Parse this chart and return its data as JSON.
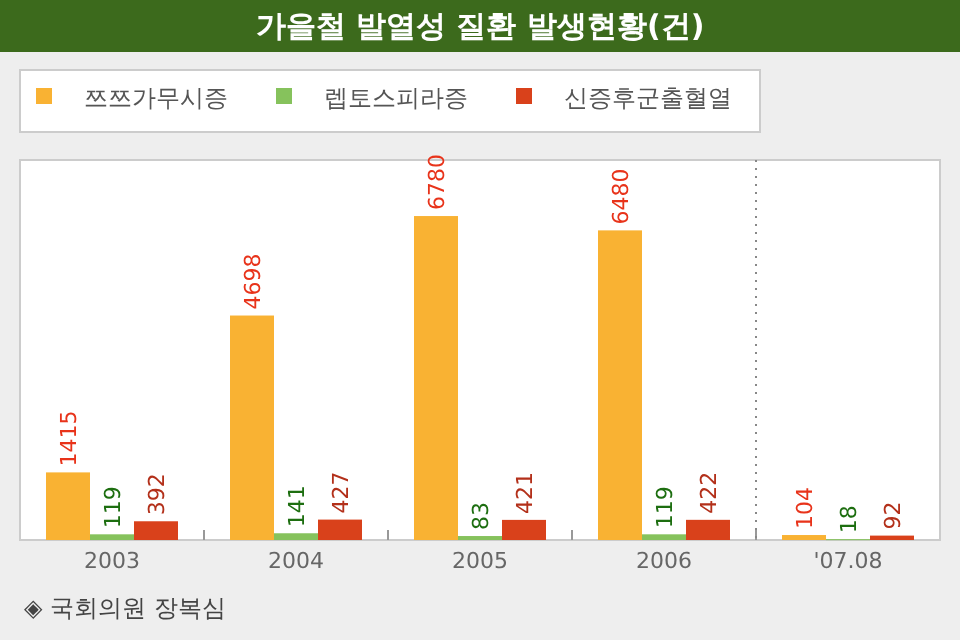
{
  "chart_data": {
    "type": "bar",
    "title": "가을철 발열성 질환 발생현황(건)",
    "categories": [
      "2003",
      "2004",
      "2005",
      "2006",
      "'07.08"
    ],
    "series": [
      {
        "name": "쯔쯔가무시증",
        "color": "#f9b233",
        "values": [
          1415,
          4698,
          6780,
          6480,
          104
        ]
      },
      {
        "name": "렙토스피라증",
        "color": "#86c25c",
        "values": [
          119,
          141,
          83,
          119,
          18
        ]
      },
      {
        "name": "신증후군출혈열",
        "color": "#d9411b",
        "values": [
          392,
          427,
          421,
          422,
          92
        ]
      }
    ],
    "data_labels": true,
    "legend": "top left",
    "grid": false,
    "annotations": [
      "◈ 국회의원 장복심"
    ]
  }
}
